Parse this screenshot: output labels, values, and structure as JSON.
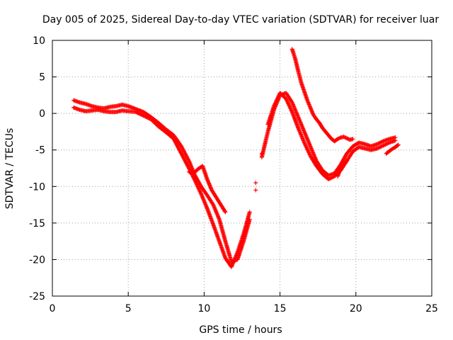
{
  "chart_data": {
    "type": "scatter",
    "title": "Day 005 of 2025, Sidereal Day-to-day VTEC variation (SDTVAR) for receiver luar",
    "xlabel": "GPS time / hours",
    "ylabel": "SDTVAR / TECUs",
    "xlim": [
      0,
      25
    ],
    "ylim": [
      -25,
      10
    ],
    "xticks": [
      0,
      5,
      10,
      15,
      20,
      25
    ],
    "yticks": [
      -25,
      -20,
      -15,
      -10,
      -5,
      0,
      5,
      10
    ],
    "grid": true,
    "marker": "+",
    "color": "#ff0000",
    "series": [
      {
        "x": [
          1.4,
          1.8,
          2.2,
          2.6,
          3.0,
          3.4,
          3.8,
          4.2,
          4.6,
          5.0,
          5.5,
          6.0,
          6.5,
          7.0,
          7.5,
          8.0,
          8.5,
          9.0,
          9.4,
          9.8,
          10.2,
          10.6,
          11.0,
          11.4,
          11.8,
          12.2,
          12.6,
          13.0,
          13.4,
          13.8,
          14.2,
          14.6,
          15.0,
          15.4,
          15.8,
          16.2,
          16.6,
          17.0,
          17.4,
          17.8,
          18.2,
          18.6,
          19.0,
          19.4,
          19.8,
          20.2,
          20.6,
          21.0,
          21.4,
          21.8,
          22.2,
          22.6
        ],
        "y": [
          1.8,
          1.5,
          1.3,
          1.0,
          0.8,
          0.7,
          0.9,
          1.0,
          1.2,
          1.0,
          0.6,
          0.2,
          -0.5,
          -1.3,
          -2.2,
          -3.0,
          -4.5,
          -6.5,
          -8.5,
          -10.0,
          -11.2,
          -12.5,
          -14.5,
          -17.5,
          -20.3,
          -20.0,
          -17.5,
          -14.5,
          -10.5,
          -6.0,
          -2.5,
          0.5,
          2.5,
          2.8,
          1.5,
          -0.5,
          -2.5,
          -4.5,
          -6.5,
          -7.8,
          -8.5,
          -8.2,
          -7.0,
          -5.5,
          -4.5,
          -4.0,
          -4.2,
          -4.5,
          -4.2,
          -3.8,
          -3.5,
          -3.3
        ]
      },
      {
        "x": [
          1.4,
          1.8,
          2.2,
          2.6,
          3.0,
          3.4,
          3.8,
          4.2,
          4.6,
          5.0,
          5.5,
          6.0,
          6.5,
          7.0,
          7.5,
          8.0,
          8.5,
          9.0,
          9.4,
          9.8,
          10.2,
          10.6,
          11.0,
          11.4,
          11.8,
          12.2,
          12.6,
          13.0,
          13.4,
          13.8,
          14.2,
          14.6,
          15.0,
          15.4,
          15.8,
          16.2,
          16.6,
          17.0,
          17.4,
          17.8,
          18.2,
          18.6,
          19.0,
          19.4,
          19.8,
          20.2,
          20.6,
          21.0,
          21.4,
          21.8,
          22.2,
          22.6
        ],
        "y": [
          0.8,
          0.5,
          0.3,
          0.4,
          0.5,
          0.3,
          0.2,
          0.2,
          0.4,
          0.3,
          0.2,
          -0.3,
          -0.8,
          -1.8,
          -2.6,
          -3.5,
          -5.5,
          -7.5,
          -9.2,
          -11.0,
          -13.0,
          -15.2,
          -17.5,
          -19.8,
          -21.0,
          -19.0,
          -16.5,
          -13.5,
          -9.5,
          -5.5,
          -1.5,
          1.0,
          2.8,
          2.0,
          0.2,
          -2.0,
          -4.0,
          -5.8,
          -7.2,
          -8.3,
          -9.0,
          -8.6,
          -7.8,
          -6.5,
          -5.2,
          -4.6,
          -4.8,
          -5.0,
          -4.8,
          -4.4,
          -4.0,
          -3.7
        ]
      },
      {
        "x": [
          15.8,
          16.0,
          16.2,
          16.4,
          16.6,
          16.8,
          17.0,
          17.2,
          17.4,
          17.6,
          17.8,
          18.0,
          18.2,
          18.4,
          18.6,
          18.8,
          19.0,
          19.2,
          19.4,
          19.6,
          19.8
        ],
        "y": [
          8.8,
          7.5,
          5.8,
          4.2,
          3.0,
          1.8,
          0.8,
          -0.2,
          -0.8,
          -1.3,
          -2.0,
          -2.5,
          -3.0,
          -3.5,
          -3.8,
          -3.5,
          -3.3,
          -3.2,
          -3.4,
          -3.6,
          -3.5
        ]
      },
      {
        "x": [
          9.0,
          9.3,
          9.6,
          9.9,
          10.2,
          10.5,
          10.8,
          11.1,
          11.4,
          18.8,
          19.0,
          19.2,
          19.4,
          22.0,
          22.3,
          22.6,
          22.8
        ],
        "y": [
          -8.0,
          -8.2,
          -7.6,
          -7.2,
          -9.0,
          -10.5,
          -11.5,
          -12.5,
          -13.5,
          -8.6,
          -7.5,
          -7.0,
          -6.5,
          -5.5,
          -5.0,
          -4.6,
          -4.3
        ]
      }
    ]
  }
}
